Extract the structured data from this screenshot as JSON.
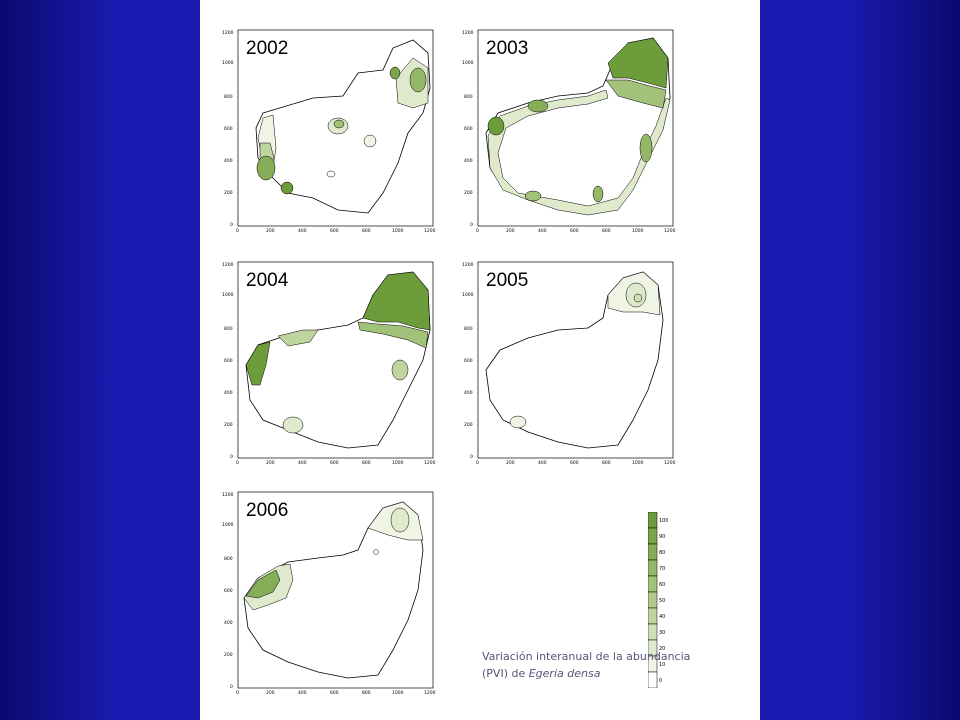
{
  "panels": [
    {
      "year": "2002"
    },
    {
      "year": "2003"
    },
    {
      "year": "2004"
    },
    {
      "year": "2005"
    },
    {
      "year": "2006"
    }
  ],
  "axes": {
    "x_ticks": [
      "0",
      "200",
      "400",
      "600",
      "800",
      "1000",
      "1200"
    ],
    "y_ticks": [
      "1200",
      "1000",
      "800",
      "600",
      "400",
      "200",
      "0"
    ]
  },
  "legend": {
    "levels": [
      "100",
      "90",
      "80",
      "70",
      "60",
      "50",
      "40",
      "30",
      "20",
      "10",
      "0"
    ],
    "colors": [
      "#6d9c3a",
      "#7aa64a",
      "#86ae58",
      "#94b868",
      "#a2c27a",
      "#b0cb8c",
      "#bfd5a0",
      "#cfe0b6",
      "#dfe9cc",
      "#eff4e4",
      "#ffffff"
    ]
  },
  "caption": {
    "line1": "Variación interanual de la abundancia",
    "line2_prefix": "(PVI) de ",
    "line2_species": "Egeria densa"
  },
  "colors": {
    "background": "#1a1ab0",
    "slide": "#ffffff",
    "dense_green": "#6d9c3a",
    "light_green": "#dfe9cc"
  }
}
